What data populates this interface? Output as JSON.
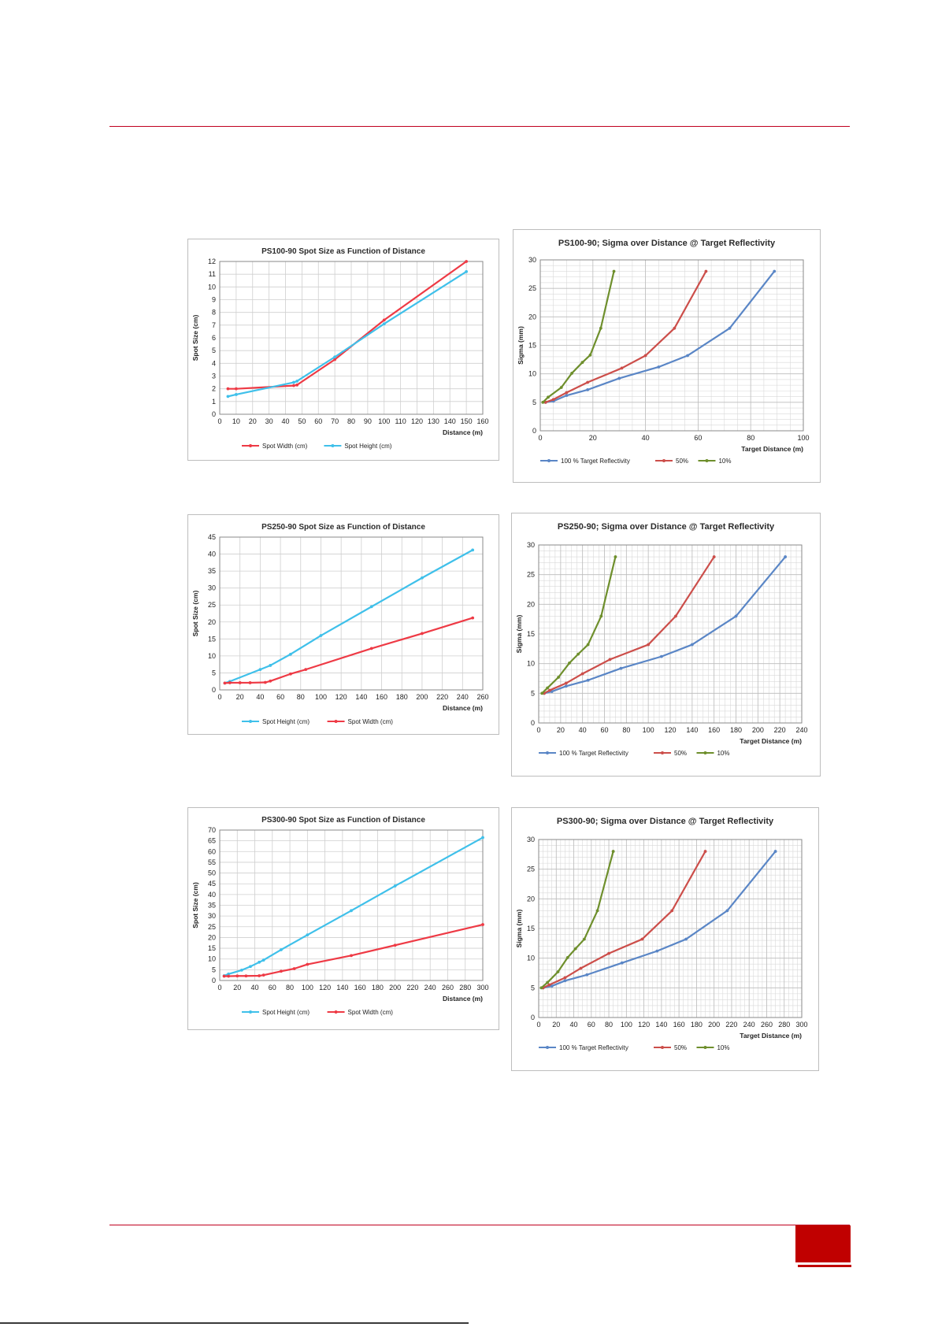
{
  "page": {
    "colors": {
      "rule": "#c0001e",
      "page_box": "#c00000"
    }
  },
  "chart_data": [
    {
      "id": "c1",
      "type": "line",
      "title": "PS100-90 Spot Size as Function of Distance",
      "xlabel": "Distance (m)",
      "ylabel": "Spot Size (cm)",
      "xlim": [
        0,
        160
      ],
      "ylim": [
        0,
        12
      ],
      "xstep": 10,
      "ystep": 1,
      "grid": "major",
      "legend": "bottom",
      "series": [
        {
          "name": "Spot Width (cm)",
          "color": "#ee3a45",
          "points": [
            [
              5,
              2.0
            ],
            [
              10,
              2.0
            ],
            [
              45,
              2.25
            ],
            [
              47,
              2.3
            ],
            [
              70,
              4.3
            ],
            [
              100,
              7.4
            ],
            [
              150,
              12.0
            ]
          ]
        },
        {
          "name": "Spot Height (cm)",
          "color": "#3fc0ea",
          "points": [
            [
              5,
              1.4
            ],
            [
              10,
              1.55
            ],
            [
              45,
              2.5
            ],
            [
              47,
              2.6
            ],
            [
              70,
              4.5
            ],
            [
              100,
              7.1
            ],
            [
              150,
              11.2
            ]
          ]
        }
      ]
    },
    {
      "id": "c2",
      "type": "line",
      "title": "PS100-90; Sigma over Distance @ Target Reflectivity",
      "xlabel": "Target Distance (m)",
      "ylabel": "Sigma (mm)",
      "xlim": [
        0,
        100
      ],
      "ylim": [
        0,
        30
      ],
      "xstep": 20,
      "ystep": 5,
      "grid": "fine",
      "legend": "bottom",
      "series": [
        {
          "name": "100 % Target Reflectivity",
          "color": "#5a86c6",
          "points": [
            [
              2,
              5
            ],
            [
              5,
              5.2
            ],
            [
              10,
              6.2
            ],
            [
              18,
              7.2
            ],
            [
              30,
              9.2
            ],
            [
              45,
              11.2
            ],
            [
              56,
              13.2
            ],
            [
              72,
              18
            ],
            [
              89,
              28
            ]
          ]
        },
        {
          "name": "50%",
          "color": "#cc4e4a",
          "points": [
            [
              2,
              5
            ],
            [
              5,
              5.5
            ],
            [
              10,
              6.7
            ],
            [
              18,
              8.5
            ],
            [
              31,
              11
            ],
            [
              40,
              13.2
            ],
            [
              51,
              18
            ],
            [
              63,
              28
            ]
          ]
        },
        {
          "name": "10%",
          "color": "#6e8f2c",
          "points": [
            [
              1,
              5
            ],
            [
              3,
              5.9
            ],
            [
              8,
              7.6
            ],
            [
              12,
              10.1
            ],
            [
              16,
              12
            ],
            [
              19,
              13.3
            ],
            [
              23,
              18
            ],
            [
              28,
              28
            ]
          ]
        }
      ]
    },
    {
      "id": "c3",
      "type": "line",
      "title": "PS250-90 Spot Size as Function of Distance",
      "xlabel": "Distance (m)",
      "ylabel": "Spot Size (cm)",
      "xlim": [
        0,
        260
      ],
      "ylim": [
        0,
        45
      ],
      "xstep": 20,
      "ystep": 5,
      "grid": "major",
      "legend": "bottom",
      "series": [
        {
          "name": "Spot Height (cm)",
          "color": "#3fc0ea",
          "points": [
            [
              5,
              2.0
            ],
            [
              10,
              2.5
            ],
            [
              40,
              6.0
            ],
            [
              50,
              7.2
            ],
            [
              70,
              10.5
            ],
            [
              100,
              16.0
            ],
            [
              150,
              24.5
            ],
            [
              200,
              33.0
            ],
            [
              250,
              41.2
            ]
          ]
        },
        {
          "name": "Spot Width (cm)",
          "color": "#ee3a45",
          "points": [
            [
              5,
              2.0
            ],
            [
              10,
              2.1
            ],
            [
              20,
              2.1
            ],
            [
              30,
              2.1
            ],
            [
              45,
              2.2
            ],
            [
              50,
              2.6
            ],
            [
              70,
              4.7
            ],
            [
              85,
              6.0
            ],
            [
              150,
              12.2
            ],
            [
              200,
              16.6
            ],
            [
              250,
              21.2
            ]
          ]
        }
      ]
    },
    {
      "id": "c4",
      "type": "line",
      "title": "PS250-90; Sigma over Distance @ Target Reflectivity",
      "xlabel": "Target Distance (m)",
      "ylabel": "Sigma (mm)",
      "xlim": [
        0,
        240
      ],
      "ylim": [
        0,
        30
      ],
      "xstep": 20,
      "ystep": 5,
      "grid": "fine",
      "legend": "bottom",
      "series": [
        {
          "name": "100 % Target Reflectivity",
          "color": "#5a86c6",
          "points": [
            [
              5,
              5
            ],
            [
              12,
              5.3
            ],
            [
              25,
              6.2
            ],
            [
              45,
              7.2
            ],
            [
              75,
              9.2
            ],
            [
              112,
              11.2
            ],
            [
              140,
              13.2
            ],
            [
              180,
              18
            ],
            [
              225,
              28
            ]
          ]
        },
        {
          "name": "50%",
          "color": "#cc4e4a",
          "points": [
            [
              5,
              5
            ],
            [
              10,
              5.5
            ],
            [
              25,
              6.7
            ],
            [
              40,
              8.3
            ],
            [
              65,
              10.7
            ],
            [
              100,
              13.2
            ],
            [
              125,
              18
            ],
            [
              160,
              28
            ]
          ]
        },
        {
          "name": "10%",
          "color": "#6e8f2c",
          "points": [
            [
              3,
              5
            ],
            [
              8,
              5.9
            ],
            [
              18,
              7.7
            ],
            [
              28,
              10.1
            ],
            [
              36,
              11.6
            ],
            [
              45,
              13.2
            ],
            [
              57,
              18
            ],
            [
              70,
              28
            ]
          ]
        }
      ]
    },
    {
      "id": "c5",
      "type": "line",
      "title": "PS300-90 Spot Size as Function of Distance",
      "xlabel": "Distance (m)",
      "ylabel": "Spot Size (cm)",
      "xlim": [
        0,
        300
      ],
      "ylim": [
        0,
        70
      ],
      "xstep": 20,
      "ystep": 5,
      "grid": "major",
      "legend": "bottom",
      "series": [
        {
          "name": "Spot Height (cm)",
          "color": "#3fc0ea",
          "points": [
            [
              5,
              2.2
            ],
            [
              10,
              3.0
            ],
            [
              25,
              4.8
            ],
            [
              35,
              6.5
            ],
            [
              45,
              8.5
            ],
            [
              50,
              9.5
            ],
            [
              70,
              14.3
            ],
            [
              100,
              21.2
            ],
            [
              150,
              32.5
            ],
            [
              200,
              44.0
            ],
            [
              300,
              66.5
            ]
          ]
        },
        {
          "name": "Spot Width (cm)",
          "color": "#ee3a45",
          "points": [
            [
              5,
              2.0
            ],
            [
              10,
              2.0
            ],
            [
              20,
              2.1
            ],
            [
              30,
              2.1
            ],
            [
              45,
              2.2
            ],
            [
              50,
              2.5
            ],
            [
              70,
              4.3
            ],
            [
              85,
              5.5
            ],
            [
              100,
              7.5
            ],
            [
              150,
              11.6
            ],
            [
              200,
              16.4
            ],
            [
              300,
              26.0
            ]
          ]
        }
      ]
    },
    {
      "id": "c6",
      "type": "line",
      "title": "PS300-90; Sigma over Distance @ Target Reflectivity",
      "xlabel": "Target Distance (m)",
      "ylabel": "Sigma (mm)",
      "xlim": [
        0,
        300
      ],
      "ylim": [
        0,
        30
      ],
      "xstep": 20,
      "ystep": 5,
      "grid": "fine",
      "legend": "bottom",
      "series": [
        {
          "name": "100 % Target Reflectivity",
          "color": "#5a86c6",
          "points": [
            [
              5,
              5
            ],
            [
              15,
              5.3
            ],
            [
              30,
              6.2
            ],
            [
              55,
              7.2
            ],
            [
              95,
              9.2
            ],
            [
              135,
              11.2
            ],
            [
              168,
              13.2
            ],
            [
              215,
              18
            ],
            [
              270,
              28
            ]
          ]
        },
        {
          "name": "50%",
          "color": "#cc4e4a",
          "points": [
            [
              5,
              5
            ],
            [
              12,
              5.5
            ],
            [
              30,
              6.7
            ],
            [
              48,
              8.3
            ],
            [
              80,
              10.8
            ],
            [
              118,
              13.2
            ],
            [
              152,
              18
            ],
            [
              190,
              28
            ]
          ]
        },
        {
          "name": "10%",
          "color": "#6e8f2c",
          "points": [
            [
              3,
              5
            ],
            [
              10,
              5.9
            ],
            [
              22,
              7.7
            ],
            [
              33,
              10.1
            ],
            [
              42,
              11.6
            ],
            [
              52,
              13.2
            ],
            [
              67,
              18
            ],
            [
              85,
              28
            ]
          ]
        }
      ]
    }
  ]
}
